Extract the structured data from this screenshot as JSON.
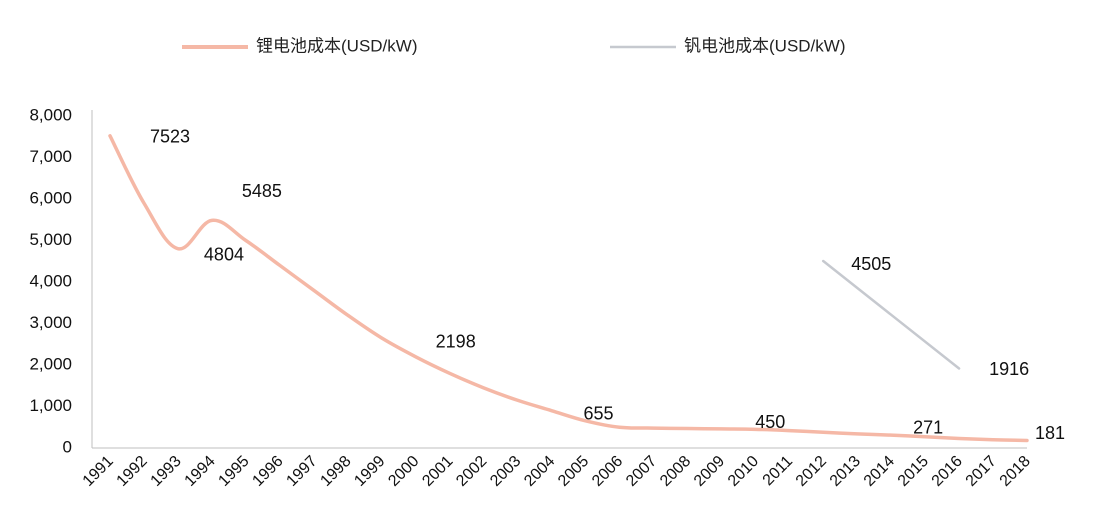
{
  "chart_data": {
    "type": "line",
    "title": "",
    "xlabel": "",
    "ylabel": "",
    "x": [
      "1991",
      "1992",
      "1993",
      "1994",
      "1995",
      "1996",
      "1997",
      "1998",
      "1999",
      "2000",
      "2001",
      "2002",
      "2003",
      "2004",
      "2005",
      "2006",
      "2007",
      "2008",
      "2009",
      "2010",
      "2011",
      "2012",
      "2013",
      "2014",
      "2015",
      "2016",
      "2017",
      "2018"
    ],
    "ylim": [
      0,
      8000
    ],
    "yticks": [
      0,
      1000,
      2000,
      3000,
      4000,
      5000,
      6000,
      7000,
      8000
    ],
    "ytick_labels": [
      "0",
      "1,000",
      "2,000",
      "3,000",
      "4,000",
      "5,000",
      "6,000",
      "7,000",
      "8,000"
    ],
    "grid": false,
    "legend_position": "top",
    "series": [
      {
        "name": "锂电池成本(USD/kW)",
        "color": "#f5b8a6",
        "values": [
          7523,
          5900,
          4804,
          5485,
          5000,
          4400,
          3800,
          3200,
          2650,
          2198,
          1800,
          1450,
          1150,
          900,
          655,
          500,
          480,
          470,
          460,
          450,
          420,
          380,
          340,
          310,
          271,
          230,
          200,
          181
        ],
        "labels": [
          {
            "index": 0,
            "text": "7523"
          },
          {
            "index": 2,
            "text": "4804"
          },
          {
            "index": 3,
            "text": "5485"
          },
          {
            "index": 9,
            "text": "2198"
          },
          {
            "index": 14,
            "text": "655"
          },
          {
            "index": 19,
            "text": "450"
          },
          {
            "index": 24,
            "text": "271"
          },
          {
            "index": 27,
            "text": "181"
          }
        ]
      },
      {
        "name": "钒电池成本(USD/kW)",
        "color": "#c6c9cf",
        "values": [
          null,
          null,
          null,
          null,
          null,
          null,
          null,
          null,
          null,
          null,
          null,
          null,
          null,
          null,
          null,
          null,
          null,
          null,
          null,
          null,
          null,
          4505,
          null,
          null,
          null,
          1916,
          null,
          null
        ],
        "labels": [
          {
            "index": 21,
            "text": "4505"
          },
          {
            "index": 25,
            "text": "1916"
          }
        ]
      }
    ]
  }
}
